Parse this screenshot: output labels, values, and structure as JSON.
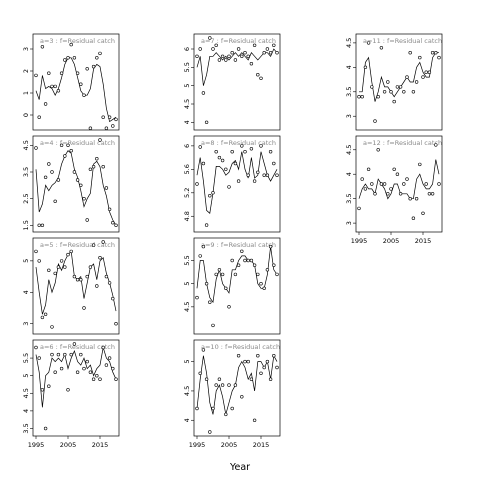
{
  "figure": {
    "xlabel": "Year"
  },
  "chart_data": [
    {
      "type": "scatter",
      "title": "a=3 : f=Residual catch",
      "xlim": [
        1995,
        2020
      ],
      "ylim": [
        -0.5,
        3.5
      ],
      "yticks": [
        0,
        1,
        2,
        3
      ],
      "xticks": [
        1995,
        2005,
        2015
      ],
      "show_xticks": false,
      "points_x": [
        1995,
        1996,
        1997,
        1998,
        1999,
        2000,
        2001,
        2002,
        2003,
        2004,
        2005,
        2006,
        2007,
        2008,
        2009,
        2010,
        2011,
        2012,
        2013,
        2014,
        2015,
        2016,
        2017,
        2018,
        2019,
        2020
      ],
      "points_y": [
        1.8,
        -0.1,
        3.1,
        0.5,
        1.9,
        1.3,
        1.3,
        1.1,
        1.9,
        2.5,
        2.6,
        3.2,
        2.6,
        1.9,
        1.4,
        0.9,
        2.1,
        -0.6,
        2.2,
        2.6,
        2.8,
        -0.1,
        -0.6,
        -0.1,
        -0.5,
        -0.2
      ],
      "line_x": [
        1995,
        1996,
        1997,
        1998,
        1999,
        2000,
        2001,
        2002,
        2003,
        2004,
        2005,
        2006,
        2007,
        2008,
        2009,
        2010,
        2011,
        2012,
        2013,
        2014,
        2015,
        2016,
        2017,
        2018,
        2019,
        2020
      ],
      "line_y": [
        1.1,
        0.7,
        1.8,
        1.2,
        1.3,
        1.2,
        0.9,
        1.2,
        1.7,
        2.3,
        2.6,
        2.6,
        2.3,
        1.7,
        1.1,
        0.9,
        0.9,
        1.2,
        2.1,
        2.3,
        2.2,
        1.4,
        0.3,
        -0.3,
        -0.2,
        -0.1
      ]
    },
    {
      "type": "scatter",
      "title": "a=4 : f=Residual catch",
      "xlim": [
        1995,
        2020
      ],
      "ylim": [
        1.4,
        4.7
      ],
      "yticks": [
        1.5,
        2.5,
        3.5,
        4.5
      ],
      "xticks": [
        1995,
        2005,
        2015
      ],
      "show_xticks": false,
      "points_x": [
        1995,
        1996,
        1997,
        1998,
        1999,
        2000,
        2001,
        2002,
        2003,
        2004,
        2005,
        2006,
        2007,
        2008,
        2009,
        2010,
        2011,
        2012,
        2013,
        2014,
        2015,
        2016,
        2017,
        2018,
        2019,
        2020
      ],
      "points_y": [
        4.4,
        1.5,
        1.5,
        3.3,
        3.8,
        3.5,
        2.4,
        3.2,
        4.5,
        4.1,
        4.5,
        4.3,
        3.5,
        3.2,
        3.0,
        2.5,
        1.7,
        3.6,
        3.7,
        4.0,
        4.7,
        3.7,
        2.9,
        2.1,
        1.6,
        1.5
      ],
      "line_x": [
        1995,
        1996,
        1997,
        1998,
        1999,
        2000,
        2001,
        2002,
        2003,
        2004,
        2005,
        2006,
        2007,
        2008,
        2009,
        2010,
        2011,
        2012,
        2013,
        2014,
        2015,
        2016,
        2017,
        2018,
        2019,
        2020
      ],
      "line_y": [
        3.6,
        2.0,
        2.3,
        3.0,
        2.8,
        3.0,
        3.1,
        3.3,
        3.8,
        4.1,
        4.3,
        4.2,
        3.6,
        3.3,
        2.8,
        2.2,
        2.5,
        2.7,
        3.8,
        3.9,
        3.7,
        3.0,
        2.6,
        2.0,
        1.7,
        1.5
      ]
    },
    {
      "type": "scatter",
      "title": "a=5 : f=Residual catch",
      "xlim": [
        1995,
        2020
      ],
      "ylim": [
        2.8,
        5.6
      ],
      "yticks": [
        3.0,
        4.0,
        5.0
      ],
      "xticks": [
        1995,
        2005,
        2015
      ],
      "show_xticks": false,
      "points_x": [
        1995,
        1996,
        1997,
        1998,
        1999,
        2000,
        2001,
        2002,
        2003,
        2004,
        2005,
        2006,
        2007,
        2008,
        2009,
        2010,
        2011,
        2012,
        2013,
        2014,
        2015,
        2016,
        2017,
        2018,
        2019,
        2020
      ],
      "points_y": [
        5.3,
        5.0,
        3.2,
        3.3,
        4.7,
        2.9,
        4.6,
        4.8,
        5.0,
        4.8,
        5.2,
        5.3,
        4.5,
        4.4,
        4.4,
        3.5,
        4.5,
        4.8,
        5.5,
        4.2,
        5.1,
        5.6,
        4.5,
        4.3,
        3.8,
        3.0
      ],
      "line_x": [
        1995,
        1996,
        1997,
        1998,
        1999,
        2000,
        2001,
        2002,
        2003,
        2004,
        2005,
        2006,
        2007,
        2008,
        2009,
        2010,
        2011,
        2012,
        2013,
        2014,
        2015,
        2016,
        2017,
        2018,
        2019,
        2020
      ],
      "line_y": [
        4.8,
        4.0,
        3.3,
        3.6,
        4.4,
        4.0,
        4.3,
        4.9,
        4.7,
        5.0,
        5.2,
        5.3,
        4.5,
        4.4,
        4.5,
        3.8,
        4.3,
        4.8,
        4.9,
        4.4,
        5.0,
        5.1,
        4.6,
        4.3,
        3.9,
        3.4
      ]
    },
    {
      "type": "scatter",
      "title": "a=6 : f=Residual catch",
      "xlim": [
        1995,
        2020
      ],
      "ylim": [
        3.4,
        5.9
      ],
      "yticks": [
        3.5,
        4.0,
        4.5,
        5.0,
        5.5
      ],
      "xticks": [
        1995,
        2005,
        2015
      ],
      "show_xticks": true,
      "points_x": [
        1995,
        1996,
        1997,
        1998,
        1999,
        2000,
        2001,
        2002,
        2003,
        2004,
        2005,
        2006,
        2007,
        2008,
        2009,
        2010,
        2011,
        2012,
        2013,
        2014,
        2015,
        2016,
        2017,
        2018,
        2019,
        2020
      ],
      "points_y": [
        5.8,
        5.5,
        4.6,
        3.5,
        4.7,
        5.6,
        5.1,
        5.6,
        5.2,
        5.6,
        4.6,
        5.6,
        5.9,
        5.1,
        5.6,
        5.2,
        5.4,
        5.1,
        4.9,
        5.0,
        4.9,
        5.8,
        5.3,
        5.5,
        5.2,
        4.9
      ],
      "line_x": [
        1995,
        1996,
        1997,
        1998,
        1999,
        2000,
        2001,
        2002,
        2003,
        2004,
        2005,
        2006,
        2007,
        2008,
        2009,
        2010,
        2011,
        2012,
        2013,
        2014,
        2015,
        2016,
        2017,
        2018,
        2019,
        2020
      ],
      "line_y": [
        5.6,
        5.1,
        4.1,
        5.0,
        5.1,
        5.5,
        5.4,
        5.5,
        5.4,
        5.6,
        5.2,
        5.5,
        5.7,
        5.4,
        5.3,
        5.5,
        5.2,
        5.3,
        5.0,
        5.2,
        5.3,
        5.8,
        5.5,
        5.4,
        5.1,
        4.9
      ]
    },
    {
      "type": "scatter",
      "title": "a=7 : f=Residual catch",
      "xlim": [
        1995,
        2020
      ],
      "ylim": [
        3.9,
        6.3
      ],
      "yticks": [
        4.0,
        4.5,
        5.0,
        5.5,
        6.0
      ],
      "xticks": [
        1995,
        2005,
        2015
      ],
      "show_xticks": false,
      "points_x": [
        1995,
        1996,
        1997,
        1998,
        1999,
        2000,
        2001,
        2002,
        2003,
        2004,
        2005,
        2006,
        2007,
        2008,
        2009,
        2010,
        2011,
        2012,
        2013,
        2014,
        2015,
        2016,
        2017,
        2018,
        2019,
        2020
      ],
      "points_y": [
        5.8,
        6.0,
        4.8,
        4.0,
        6.3,
        6.0,
        6.1,
        5.7,
        5.8,
        5.7,
        5.8,
        5.9,
        5.7,
        6.0,
        5.8,
        5.9,
        5.8,
        5.6,
        6.1,
        5.3,
        5.2,
        5.9,
        6.0,
        5.9,
        6.1,
        5.9
      ],
      "line_x": [
        1995,
        1996,
        1997,
        1998,
        1999,
        2000,
        2001,
        2002,
        2003,
        2004,
        2005,
        2006,
        2007,
        2008,
        2009,
        2010,
        2011,
        2012,
        2013,
        2014,
        2015,
        2016,
        2017,
        2018,
        2019,
        2020
      ],
      "line_y": [
        5.5,
        5.8,
        5.0,
        5.3,
        5.8,
        5.8,
        5.9,
        5.8,
        5.7,
        5.8,
        5.7,
        5.8,
        5.9,
        5.8,
        5.9,
        5.8,
        5.7,
        5.9,
        5.8,
        5.7,
        5.8,
        5.9,
        5.9,
        5.8,
        6.0,
        5.9
      ]
    },
    {
      "type": "scatter",
      "title": "a=8 : f=Residual catch",
      "xlim": [
        1995,
        2020
      ],
      "ylim": [
        4.6,
        6.1
      ],
      "yticks": [
        4.8,
        5.2,
        5.6,
        6.0
      ],
      "xticks": [
        1995,
        2005,
        2015
      ],
      "show_xticks": false,
      "points_x": [
        1995,
        1996,
        1997,
        1998,
        1999,
        2000,
        2001,
        2002,
        2003,
        2004,
        2005,
        2006,
        2007,
        2008,
        2009,
        2010,
        2011,
        2012,
        2013,
        2014,
        2015,
        2016,
        2017,
        2018,
        2019,
        2020
      ],
      "points_y": [
        5.35,
        5.98,
        5.7,
        4.65,
        5.15,
        5.2,
        5.9,
        5.8,
        5.75,
        5.6,
        5.3,
        5.9,
        5.7,
        5.4,
        6.0,
        5.9,
        5.5,
        5.95,
        5.4,
        5.55,
        6.0,
        5.5,
        5.5,
        5.9,
        5.7,
        5.5
      ],
      "line_x": [
        1995,
        1996,
        1997,
        1998,
        1999,
        2000,
        2001,
        2002,
        2003,
        2004,
        2005,
        2006,
        2007,
        2008,
        2009,
        2010,
        2011,
        2012,
        2013,
        2014,
        2015,
        2016,
        2017,
        2018,
        2019,
        2020
      ],
      "line_y": [
        5.5,
        5.8,
        5.4,
        4.9,
        4.85,
        5.2,
        5.65,
        5.65,
        5.6,
        5.5,
        5.55,
        5.7,
        5.75,
        5.6,
        5.9,
        5.6,
        5.45,
        5.8,
        5.45,
        5.5,
        5.9,
        5.7,
        5.5,
        5.4,
        5.5,
        5.6
      ]
    },
    {
      "type": "scatter",
      "title": "a=9 : f=Residual catch",
      "xlim": [
        1995,
        2020
      ],
      "ylim": [
        4.0,
        5.9
      ],
      "yticks": [
        4.5,
        5.0,
        5.5
      ],
      "xticks": [
        1995,
        2005,
        2015
      ],
      "show_xticks": false,
      "points_x": [
        1995,
        1996,
        1997,
        1998,
        1999,
        2000,
        2001,
        2002,
        2003,
        2004,
        2005,
        2006,
        2007,
        2008,
        2009,
        2010,
        2011,
        2012,
        2013,
        2014,
        2015,
        2016,
        2017,
        2018,
        2019,
        2020
      ],
      "points_y": [
        4.7,
        5.6,
        5.8,
        5.0,
        4.6,
        4.1,
        5.2,
        5.3,
        5.2,
        4.9,
        4.5,
        5.5,
        5.2,
        5.4,
        5.7,
        5.5,
        5.5,
        5.5,
        5.4,
        5.2,
        5.0,
        4.9,
        5.3,
        5.8,
        5.4,
        5.2
      ],
      "line_x": [
        1995,
        1996,
        1997,
        1998,
        1999,
        2000,
        2001,
        2002,
        2003,
        2004,
        2005,
        2006,
        2007,
        2008,
        2009,
        2010,
        2011,
        2012,
        2013,
        2014,
        2015,
        2016,
        2017,
        2018,
        2019,
        2020
      ],
      "line_y": [
        4.9,
        5.5,
        5.5,
        5.0,
        4.7,
        4.6,
        5.1,
        5.3,
        5.0,
        4.9,
        4.8,
        5.3,
        5.3,
        5.5,
        5.6,
        5.6,
        5.5,
        5.5,
        5.4,
        5.0,
        4.9,
        4.9,
        5.2,
        5.8,
        5.3,
        5.2
      ]
    },
    {
      "type": "scatter",
      "title": "a=10 : f=Residual catch",
      "xlim": [
        1995,
        2020
      ],
      "ylim": [
        3.8,
        5.3
      ],
      "yticks": [
        4.0,
        4.5,
        5.0
      ],
      "xticks": [
        1995,
        2005,
        2015
      ],
      "show_xticks": true,
      "points_x": [
        1995,
        1996,
        1997,
        1998,
        1999,
        2000,
        2001,
        2002,
        2003,
        2004,
        2005,
        2006,
        2007,
        2008,
        2009,
        2010,
        2011,
        2012,
        2013,
        2014,
        2015,
        2016,
        2017,
        2018,
        2019,
        2020
      ],
      "points_y": [
        4.2,
        4.8,
        5.2,
        4.7,
        3.8,
        4.2,
        4.6,
        4.7,
        4.6,
        4.1,
        4.6,
        4.2,
        4.6,
        5.1,
        4.4,
        5.0,
        5.0,
        4.7,
        4.0,
        5.1,
        4.8,
        4.9,
        5.0,
        4.7,
        5.1,
        4.9
      ],
      "line_x": [
        1995,
        1996,
        1997,
        1998,
        1999,
        2000,
        2001,
        2002,
        2003,
        2004,
        2005,
        2006,
        2007,
        2008,
        2009,
        2010,
        2011,
        2012,
        2013,
        2014,
        2015,
        2016,
        2017,
        2018,
        2019,
        2020
      ],
      "line_y": [
        4.2,
        4.7,
        5.1,
        4.8,
        4.3,
        4.1,
        4.5,
        4.6,
        4.4,
        4.1,
        4.3,
        4.5,
        4.6,
        4.9,
        5.0,
        4.9,
        4.7,
        4.8,
        4.5,
        5.0,
        5.0,
        4.9,
        5.0,
        4.7,
        5.1,
        5.0
      ]
    },
    {
      "type": "scatter",
      "title": "a=11 : f=Residual catch",
      "xlim": [
        1995,
        2020
      ],
      "ylim": [
        2.8,
        4.6
      ],
      "yticks": [
        3.0,
        3.5,
        4.0,
        4.5
      ],
      "xticks": [
        1995,
        2005,
        2015
      ],
      "show_xticks": false,
      "points_x": [
        1995,
        1996,
        1997,
        1998,
        1999,
        2000,
        2001,
        2002,
        2003,
        2004,
        2005,
        2006,
        2007,
        2008,
        2009,
        2010,
        2011,
        2012,
        2013,
        2014,
        2015,
        2016,
        2017,
        2018,
        2019,
        2020
      ],
      "points_y": [
        3.4,
        3.4,
        4.0,
        4.5,
        3.6,
        2.9,
        3.4,
        4.4,
        3.5,
        3.7,
        3.5,
        3.3,
        3.6,
        3.6,
        3.5,
        3.8,
        4.3,
        3.5,
        3.7,
        4.2,
        3.8,
        3.9,
        3.9,
        4.3,
        4.3,
        4.2
      ],
      "line_x": [
        1995,
        1996,
        1997,
        1998,
        1999,
        2000,
        2001,
        2002,
        2003,
        2004,
        2005,
        2006,
        2007,
        2008,
        2009,
        2010,
        2011,
        2012,
        2013,
        2014,
        2015,
        2016,
        2017,
        2018,
        2019,
        2020
      ],
      "line_y": [
        3.5,
        3.5,
        4.1,
        4.2,
        3.7,
        3.3,
        3.5,
        3.8,
        3.6,
        3.6,
        3.5,
        3.4,
        3.5,
        3.6,
        3.7,
        3.8,
        3.7,
        3.7,
        4.0,
        4.1,
        3.9,
        3.8,
        3.8,
        4.2,
        4.3,
        4.3
      ]
    },
    {
      "type": "scatter",
      "title": "a=12 : f=Residual catch",
      "xlim": [
        1995,
        2020
      ],
      "ylim": [
        2.9,
        4.7
      ],
      "yticks": [
        3.0,
        3.5,
        4.0,
        4.5
      ],
      "xticks": [
        1995,
        2005,
        2015
      ],
      "show_xticks": true,
      "points_x": [
        1995,
        1996,
        1997,
        1998,
        1999,
        2000,
        2001,
        2002,
        2003,
        2004,
        2005,
        2006,
        2007,
        2008,
        2009,
        2010,
        2011,
        2012,
        2013,
        2014,
        2015,
        2016,
        2017,
        2018,
        2019,
        2020
      ],
      "points_y": [
        3.3,
        3.9,
        3.7,
        4.1,
        3.8,
        3.6,
        4.5,
        3.8,
        3.8,
        3.6,
        3.7,
        4.1,
        4.0,
        3.6,
        3.8,
        3.9,
        3.5,
        3.1,
        3.5,
        4.2,
        3.2,
        3.8,
        3.6,
        3.6,
        4.6,
        3.8
      ],
      "line_x": [
        1995,
        1996,
        1997,
        1998,
        1999,
        2000,
        2001,
        2002,
        2003,
        2004,
        2005,
        2006,
        2007,
        2008,
        2009,
        2010,
        2011,
        2012,
        2013,
        2014,
        2015,
        2016,
        2017,
        2018,
        2019,
        2020
      ],
      "line_y": [
        3.5,
        3.7,
        3.8,
        3.7,
        3.7,
        3.6,
        3.9,
        3.8,
        3.7,
        3.5,
        3.6,
        3.8,
        3.8,
        3.6,
        3.6,
        3.6,
        3.5,
        3.5,
        3.9,
        4.0,
        3.8,
        3.7,
        3.7,
        3.8,
        4.3,
        4.0
      ]
    }
  ]
}
